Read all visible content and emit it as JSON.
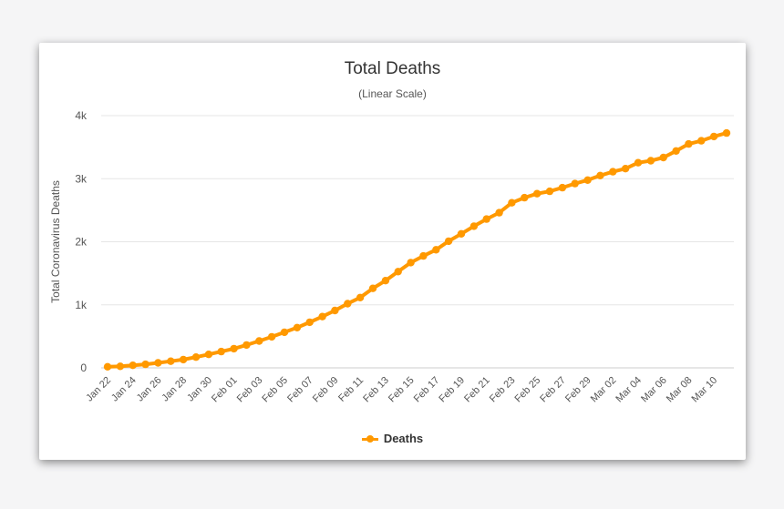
{
  "chart_data": {
    "type": "line",
    "title": "Total Deaths",
    "subtitle": "(Linear Scale)",
    "ylabel": "Total Coronavirus Deaths",
    "xlabel": "",
    "ylim": [
      0,
      4000
    ],
    "yticks": [
      0,
      1000,
      2000,
      3000,
      4000
    ],
    "ytick_labels": [
      "0",
      "1k",
      "2k",
      "3k",
      "4k"
    ],
    "grid": true,
    "legend_position": "bottom-center",
    "x": [
      "Jan 22",
      "Jan 23",
      "Jan 24",
      "Jan 25",
      "Jan 26",
      "Jan 27",
      "Jan 28",
      "Jan 29",
      "Jan 30",
      "Jan 31",
      "Feb 01",
      "Feb 02",
      "Feb 03",
      "Feb 04",
      "Feb 05",
      "Feb 06",
      "Feb 07",
      "Feb 08",
      "Feb 09",
      "Feb 10",
      "Feb 11",
      "Feb 12",
      "Feb 13",
      "Feb 14",
      "Feb 15",
      "Feb 16",
      "Feb 17",
      "Feb 18",
      "Feb 19",
      "Feb 20",
      "Feb 21",
      "Feb 22",
      "Feb 23",
      "Feb 24",
      "Feb 25",
      "Feb 26",
      "Feb 27",
      "Feb 28",
      "Feb 29",
      "Mar 01",
      "Mar 02",
      "Mar 03",
      "Mar 04",
      "Mar 05",
      "Mar 06",
      "Mar 07",
      "Mar 08",
      "Mar 09",
      "Mar 10",
      "Mar 11"
    ],
    "xtick_labels": [
      "Jan 22",
      "Jan 24",
      "Jan 26",
      "Jan 28",
      "Jan 30",
      "Feb 01",
      "Feb 03",
      "Feb 05",
      "Feb 07",
      "Feb 09",
      "Feb 11",
      "Feb 13",
      "Feb 15",
      "Feb 17",
      "Feb 19",
      "Feb 21",
      "Feb 23",
      "Feb 25",
      "Feb 27",
      "Feb 29",
      "Mar 02",
      "Mar 04",
      "Mar 06",
      "Mar 08",
      "Mar 10"
    ],
    "series": [
      {
        "name": "Deaths",
        "color": "#FF9900",
        "values": [
          17,
          25,
          41,
          56,
          80,
          106,
          132,
          170,
          213,
          259,
          304,
          362,
          426,
          492,
          565,
          638,
          724,
          813,
          910,
          1018,
          1115,
          1261,
          1383,
          1526,
          1669,
          1775,
          1873,
          2009,
          2126,
          2247,
          2360,
          2460,
          2618,
          2699,
          2763,
          2800,
          2858,
          2923,
          2977,
          3050,
          3110,
          3160,
          3254,
          3285,
          3336,
          3439,
          3551,
          3602,
          3669,
          3724
        ]
      }
    ]
  }
}
